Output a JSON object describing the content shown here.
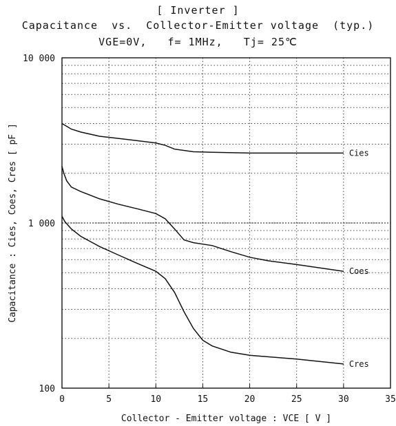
{
  "header": {
    "line1": "[ Inverter ]",
    "line2": "Capacitance  vs.  Collector-Emitter voltage  (typ.)",
    "line3": "VGE=0V,   f= 1MHz,   Tj= 25℃"
  },
  "chart_data": {
    "type": "line",
    "title": "Capacitance vs. Collector-Emitter voltage (typ.)",
    "subtitle": "VGE=0V, f= 1MHz, Tj= 25℃",
    "xlabel": "Collector - Emitter voltage  :  VCE  [ V ]",
    "ylabel": "Capacitance  :  Cies, Coes, Cres  [ pF ]",
    "xlim": [
      0,
      35
    ],
    "ylim": [
      100,
      10000
    ],
    "yscale": "log",
    "grid": true,
    "x_ticks": [
      "0",
      "5",
      "10",
      "15",
      "20",
      "25",
      "30",
      "35"
    ],
    "y_ticks": [
      "100",
      "1 000",
      "10 000"
    ],
    "series": [
      {
        "name": "Cies",
        "x": [
          0,
          0.5,
          1,
          2,
          4,
          6,
          8,
          10,
          11,
          12,
          14,
          16,
          20,
          25,
          30
        ],
        "y": [
          4000,
          3850,
          3700,
          3550,
          3350,
          3250,
          3150,
          3050,
          2950,
          2800,
          2700,
          2680,
          2650,
          2650,
          2650
        ]
      },
      {
        "name": "Coes",
        "x": [
          0,
          0.2,
          0.5,
          1,
          2,
          4,
          6,
          8,
          10,
          11,
          12,
          13,
          14,
          16,
          18,
          20,
          22,
          25,
          30
        ],
        "y": [
          2200,
          2000,
          1800,
          1650,
          1550,
          1400,
          1300,
          1220,
          1140,
          1060,
          920,
          790,
          760,
          730,
          670,
          620,
          590,
          560,
          510
        ]
      },
      {
        "name": "Cres",
        "x": [
          0,
          0.3,
          1,
          2,
          4,
          6,
          8,
          10,
          11,
          12,
          13,
          14,
          15,
          16,
          18,
          20,
          25,
          30
        ],
        "y": [
          1100,
          1020,
          920,
          830,
          720,
          640,
          570,
          510,
          460,
          380,
          290,
          230,
          195,
          180,
          165,
          158,
          150,
          140
        ]
      }
    ]
  }
}
